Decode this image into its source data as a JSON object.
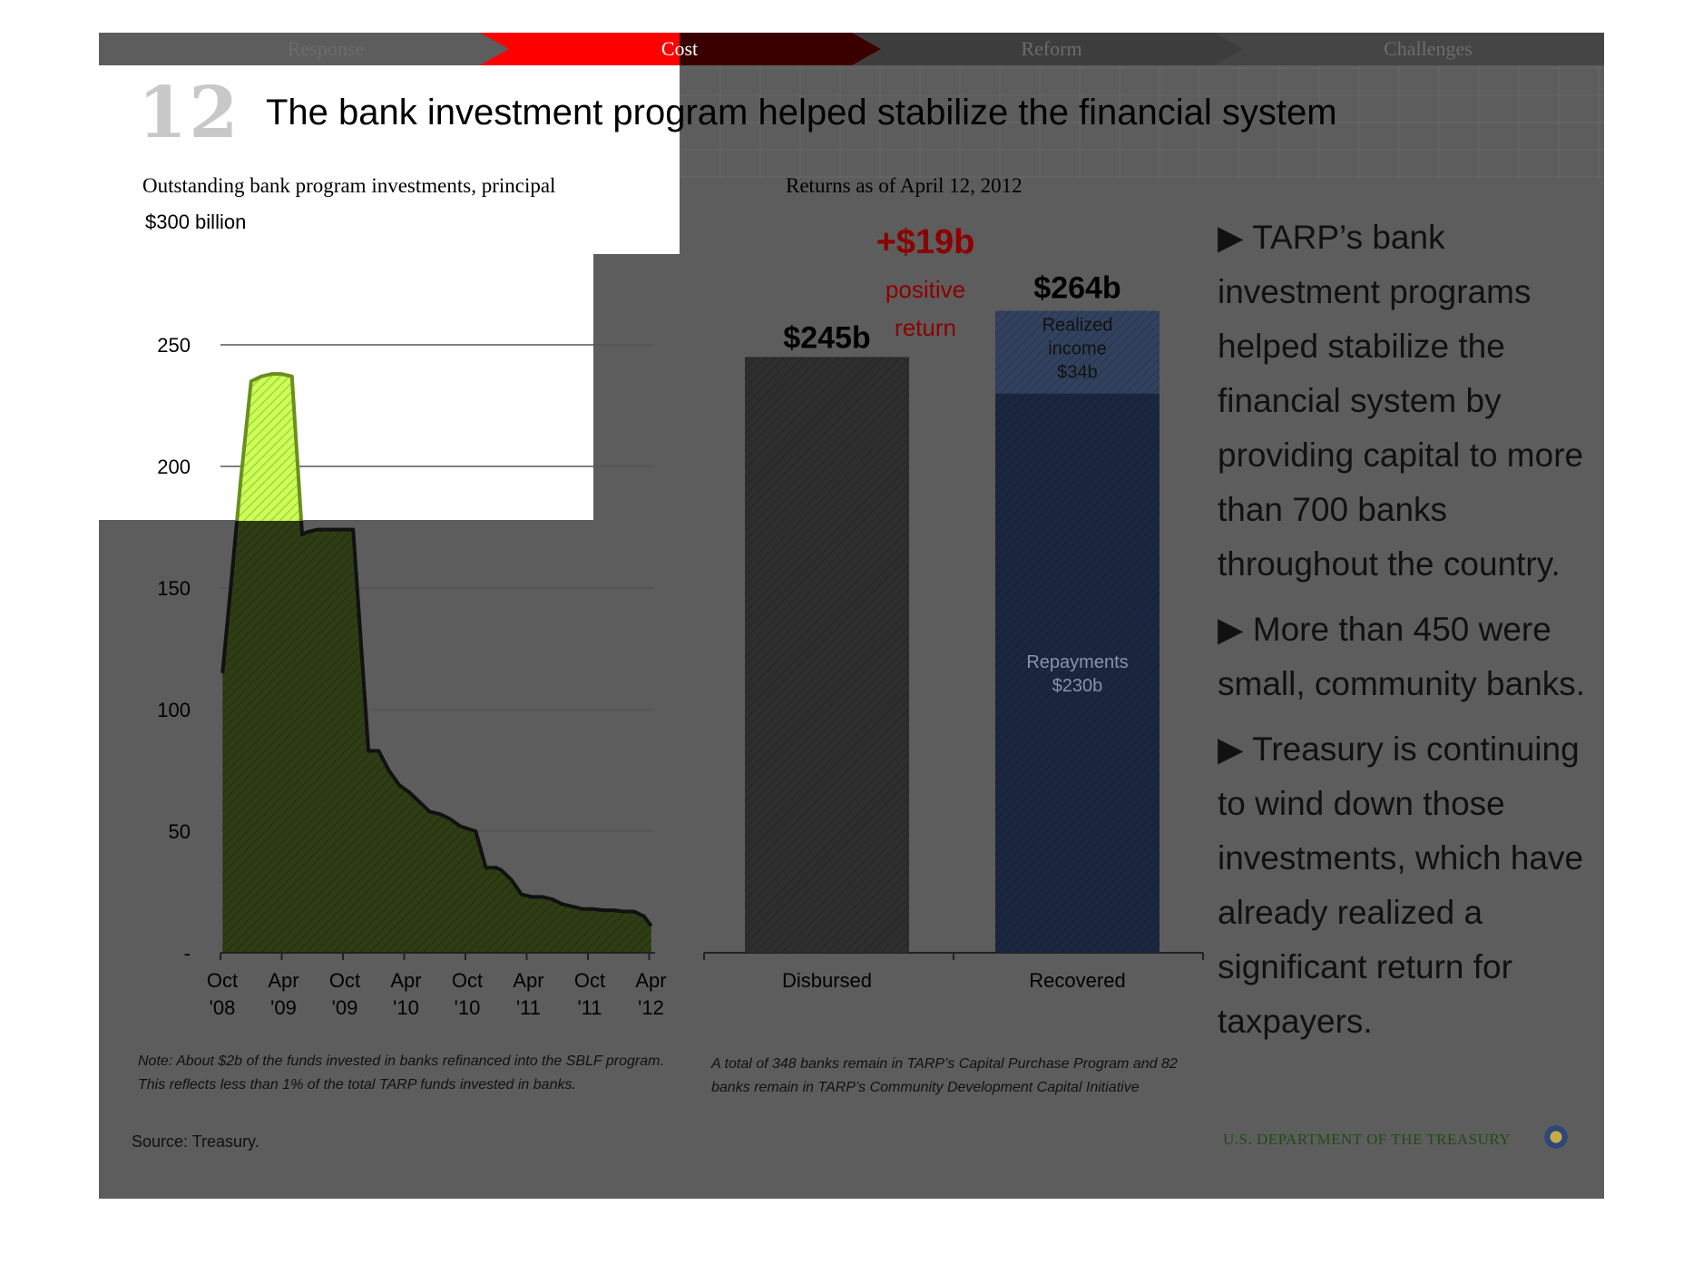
{
  "nav": {
    "tabs": [
      {
        "label": "Response",
        "active": false
      },
      {
        "label": "Cost",
        "active": true
      },
      {
        "label": "Reform",
        "active": false
      },
      {
        "label": "Challenges",
        "active": false
      }
    ]
  },
  "slide": {
    "number": "12",
    "title": "The bank investment program helped stabilize the financial system"
  },
  "colors": {
    "background": "#5d5d5d",
    "active_tab": "#ff0000",
    "area_fill": "#2f3d14",
    "area_highlight": "#ccff55",
    "disbursed_bar": "#2e2e2e",
    "repayments_bar": "#1b2740",
    "income_bar": "#32425e",
    "return_text": "#8b0000"
  },
  "left_chart": {
    "title": "Outstanding bank program investments, principal",
    "unit_label": "$300 billion",
    "note": "Note: About $2b of the funds invested in banks refinanced into the SBLF program. This reflects less than 1% of the total TARP funds invested in banks.",
    "source": "Source: Treasury."
  },
  "right_chart": {
    "title": "Returns as of April 12, 2012",
    "gain_label": "+$19b",
    "gain_sub1": "positive",
    "gain_sub2": "return",
    "note": "A total of 348 banks remain in TARP’s Capital Purchase Program and 82 banks remain in TARP’s Community Development Capital Initiative"
  },
  "bullets": [
    {
      "icon": "triangle-bullet-icon",
      "text": "TARP’s bank investment programs helped stabilize the financial system by providing capital to more than 700 banks throughout the country."
    },
    {
      "icon": "triangle-bullet-icon",
      "text": "More than 450 were small, community banks."
    },
    {
      "icon": "triangle-bullet-icon",
      "text": "Treasury is continuing to wind down those investments, which have already realized a significant return for taxpayers."
    }
  ],
  "footer": {
    "department": "U.S. DEPARTMENT OF THE TREASURY",
    "seal_icon": "treasury-seal-icon"
  },
  "chart_data": [
    {
      "type": "area",
      "title": "Outstanding bank program investments, principal",
      "ylabel": "$300 billion",
      "ylim": [
        0,
        300
      ],
      "yticks": [
        {
          "value": 0,
          "label": "-"
        },
        {
          "value": 50,
          "label": "50"
        },
        {
          "value": 100,
          "label": "100"
        },
        {
          "value": 150,
          "label": "150"
        },
        {
          "value": 200,
          "label": "200"
        },
        {
          "value": 250,
          "label": "250"
        }
      ],
      "xticks": [
        {
          "label1": "Oct",
          "label2": "'08",
          "month": 0
        },
        {
          "label1": "Apr",
          "label2": "'09",
          "month": 6
        },
        {
          "label1": "Oct",
          "label2": "'09",
          "month": 12
        },
        {
          "label1": "Apr",
          "label2": "'10",
          "month": 18
        },
        {
          "label1": "Oct",
          "label2": "'10",
          "month": 24
        },
        {
          "label1": "Apr",
          "label2": "'11",
          "month": 30
        },
        {
          "label1": "Oct",
          "label2": "'11",
          "month": 36
        },
        {
          "label1": "Apr",
          "label2": "'12",
          "month": 42
        }
      ],
      "x_unit": "months since Oct 2008",
      "x": [
        0.2,
        1.0,
        2.0,
        3.0,
        4.0,
        5.0,
        6.0,
        7.0,
        8.0,
        8.5,
        9.5,
        10.5,
        11.2,
        12.0,
        13.0,
        14.5,
        15.5,
        16.5,
        17.5,
        18.5,
        19.5,
        20.5,
        21.5,
        22.5,
        23.5,
        25.0,
        26.0,
        27.0,
        27.5,
        28.5,
        29.5,
        30.5,
        31.5,
        32.5,
        33.5,
        34.5,
        35.5,
        36.5,
        37.5,
        38.5,
        39.5,
        40.5,
        41.5,
        42.2
      ],
      "values": [
        115,
        150,
        195,
        235,
        237,
        238,
        238,
        237,
        172,
        173,
        174,
        174,
        174,
        174,
        174,
        83,
        83,
        75,
        69,
        66,
        62,
        58,
        57,
        55,
        52,
        50,
        35,
        35,
        34,
        30,
        24,
        23,
        23,
        22,
        20,
        19,
        18,
        18,
        17.5,
        17.5,
        17,
        17,
        15,
        11
      ]
    },
    {
      "type": "bar",
      "title": "Returns as of April 12, 2012",
      "categories": [
        "Disbursed",
        "Recovered"
      ],
      "ylim": [
        0,
        300
      ],
      "totals": [
        "$245b",
        "$264b"
      ],
      "series": [
        {
          "name": "Disbursed",
          "values": [
            245,
            0
          ]
        },
        {
          "name": "Repayments",
          "values": [
            0,
            230
          ],
          "label1": "Repayments",
          "label2": "$230b"
        },
        {
          "name": "Realized income",
          "values": [
            0,
            34
          ],
          "label1": "Realized",
          "label2": "income",
          "label3": "$34b"
        }
      ]
    }
  ]
}
